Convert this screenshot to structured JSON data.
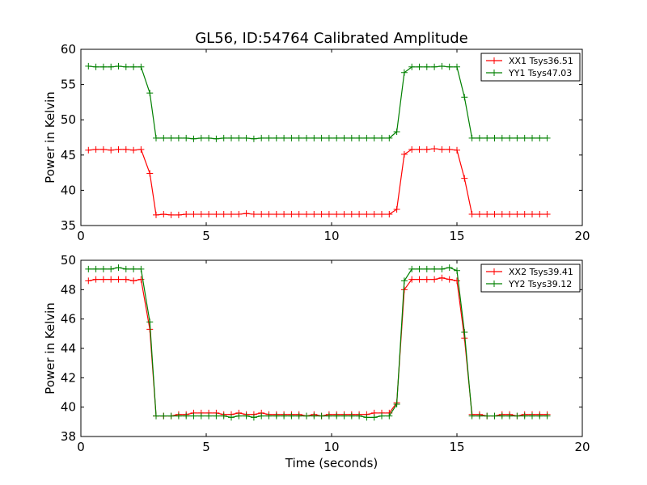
{
  "chart_data": [
    {
      "type": "line",
      "title": "GL56, ID:54764 Calibrated Amplitude",
      "xlabel": "",
      "ylabel": "Power in Kelvin",
      "xlim": [
        0,
        20
      ],
      "ylim": [
        35,
        60
      ],
      "xticks": [
        0,
        5,
        10,
        15,
        20
      ],
      "yticks": [
        35,
        40,
        45,
        50,
        55,
        60
      ],
      "legend_position": "top-right",
      "grid": false,
      "x": [
        0.3,
        0.6,
        0.9,
        1.2,
        1.5,
        1.8,
        2.1,
        2.4,
        2.75,
        3.0,
        3.3,
        3.6,
        3.9,
        4.2,
        4.5,
        4.8,
        5.1,
        5.4,
        5.7,
        6.0,
        6.3,
        6.6,
        6.9,
        7.2,
        7.5,
        7.8,
        8.1,
        8.4,
        8.7,
        9.0,
        9.3,
        9.6,
        9.9,
        10.2,
        10.5,
        10.8,
        11.1,
        11.4,
        11.7,
        12.0,
        12.3,
        12.6,
        12.9,
        13.2,
        13.5,
        13.8,
        14.1,
        14.4,
        14.7,
        15.0,
        15.3,
        15.6,
        15.9,
        16.2,
        16.5,
        16.8,
        17.1,
        17.4,
        17.7,
        18.0,
        18.3,
        18.6
      ],
      "series": [
        {
          "name": "XX1 Tsys36.51",
          "color": "#ff0000",
          "values": [
            45.7,
            45.8,
            45.8,
            45.7,
            45.8,
            45.8,
            45.7,
            45.8,
            42.4,
            36.5,
            36.6,
            36.5,
            36.5,
            36.6,
            36.6,
            36.6,
            36.6,
            36.6,
            36.6,
            36.6,
            36.6,
            36.7,
            36.6,
            36.6,
            36.6,
            36.6,
            36.6,
            36.6,
            36.6,
            36.6,
            36.6,
            36.6,
            36.6,
            36.6,
            36.6,
            36.6,
            36.6,
            36.6,
            36.6,
            36.6,
            36.6,
            37.3,
            45.1,
            45.8,
            45.8,
            45.8,
            45.9,
            45.8,
            45.8,
            45.7,
            41.7,
            36.6,
            36.6,
            36.6,
            36.6,
            36.6,
            36.6,
            36.6,
            36.6,
            36.6,
            36.6,
            36.6
          ]
        },
        {
          "name": "YY1 Tsys47.03",
          "color": "#008000",
          "values": [
            57.6,
            57.5,
            57.5,
            57.5,
            57.6,
            57.5,
            57.5,
            57.5,
            53.8,
            47.4,
            47.4,
            47.4,
            47.4,
            47.4,
            47.3,
            47.4,
            47.4,
            47.3,
            47.4,
            47.4,
            47.4,
            47.4,
            47.3,
            47.4,
            47.4,
            47.4,
            47.4,
            47.4,
            47.4,
            47.4,
            47.4,
            47.4,
            47.4,
            47.4,
            47.4,
            47.4,
            47.4,
            47.4,
            47.4,
            47.4,
            47.4,
            48.3,
            56.7,
            57.5,
            57.5,
            57.5,
            57.5,
            57.6,
            57.5,
            57.5,
            53.2,
            47.4,
            47.4,
            47.4,
            47.4,
            47.4,
            47.4,
            47.4,
            47.4,
            47.4,
            47.4,
            47.4
          ]
        }
      ]
    },
    {
      "type": "line",
      "title": "",
      "xlabel": "Time (seconds)",
      "ylabel": "Power in Kelvin",
      "xlim": [
        0,
        20
      ],
      "ylim": [
        38,
        50
      ],
      "xticks": [
        0,
        5,
        10,
        15,
        20
      ],
      "yticks": [
        38,
        40,
        42,
        44,
        46,
        48,
        50
      ],
      "legend_position": "top-right",
      "grid": false,
      "x": [
        0.3,
        0.6,
        0.9,
        1.2,
        1.5,
        1.8,
        2.1,
        2.4,
        2.75,
        3.0,
        3.3,
        3.6,
        3.9,
        4.2,
        4.5,
        4.8,
        5.1,
        5.4,
        5.7,
        6.0,
        6.3,
        6.6,
        6.9,
        7.2,
        7.5,
        7.8,
        8.1,
        8.4,
        8.7,
        9.0,
        9.3,
        9.6,
        9.9,
        10.2,
        10.5,
        10.8,
        11.1,
        11.4,
        11.7,
        12.0,
        12.3,
        12.6,
        12.9,
        13.2,
        13.5,
        13.8,
        14.1,
        14.4,
        14.7,
        15.0,
        15.3,
        15.6,
        15.9,
        16.2,
        16.5,
        16.8,
        17.1,
        17.4,
        17.7,
        18.0,
        18.3,
        18.6
      ],
      "series": [
        {
          "name": "XX2 Tsys39.41",
          "color": "#ff0000",
          "values": [
            48.6,
            48.7,
            48.7,
            48.7,
            48.7,
            48.7,
            48.6,
            48.7,
            45.3,
            39.4,
            39.4,
            39.4,
            39.5,
            39.5,
            39.6,
            39.6,
            39.6,
            39.6,
            39.5,
            39.5,
            39.6,
            39.5,
            39.5,
            39.6,
            39.5,
            39.5,
            39.5,
            39.5,
            39.5,
            39.4,
            39.5,
            39.4,
            39.5,
            39.5,
            39.5,
            39.5,
            39.5,
            39.5,
            39.6,
            39.6,
            39.6,
            40.3,
            48.0,
            48.7,
            48.7,
            48.7,
            48.7,
            48.8,
            48.7,
            48.6,
            44.7,
            39.5,
            39.5,
            39.4,
            39.4,
            39.5,
            39.5,
            39.4,
            39.5,
            39.5,
            39.5,
            39.5
          ]
        },
        {
          "name": "YY2 Tsys39.12",
          "color": "#008000",
          "values": [
            49.4,
            49.4,
            49.4,
            49.4,
            49.5,
            49.4,
            49.4,
            49.4,
            45.8,
            39.4,
            39.4,
            39.4,
            39.4,
            39.4,
            39.4,
            39.4,
            39.4,
            39.4,
            39.4,
            39.3,
            39.4,
            39.4,
            39.3,
            39.4,
            39.4,
            39.4,
            39.4,
            39.4,
            39.4,
            39.4,
            39.4,
            39.4,
            39.4,
            39.4,
            39.4,
            39.4,
            39.4,
            39.3,
            39.3,
            39.4,
            39.4,
            40.2,
            48.6,
            49.4,
            49.4,
            49.4,
            49.4,
            49.4,
            49.5,
            49.3,
            45.1,
            39.4,
            39.4,
            39.4,
            39.4,
            39.4,
            39.4,
            39.4,
            39.4,
            39.4,
            39.4,
            39.4
          ]
        }
      ]
    }
  ]
}
